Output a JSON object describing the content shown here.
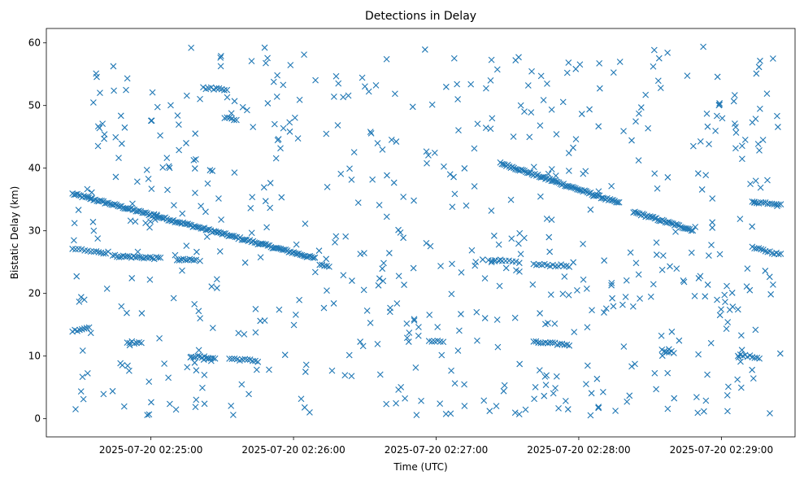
{
  "chart_data": {
    "type": "scatter",
    "title": "Detections in Delay",
    "xlabel": "Time (UTC)",
    "ylabel": "Bistatic Delay (km)",
    "x_axis_type": "datetime",
    "xlim": [
      "2025-07-20 02:24:16",
      "2025-07-20 02:29:31"
    ],
    "ylim": [
      -2.9,
      62.3
    ],
    "x_ticks": [
      "2025-07-20 02:25:00",
      "2025-07-20 02:26:00",
      "2025-07-20 02:27:00",
      "2025-07-20 02:28:00",
      "2025-07-20 02:29:00"
    ],
    "y_ticks": [
      0,
      10,
      20,
      30,
      40,
      50,
      60
    ],
    "grid": false,
    "marker": "x",
    "color": "#1f77b4",
    "track_series": [
      {
        "x_start": "2025-07-20 02:24:27",
        "x_end": "2025-07-20 02:26:09",
        "y_start": 35.9,
        "y_end": 25.6,
        "count": 150
      },
      {
        "x_start": "2025-07-20 02:27:27",
        "x_end": "2025-07-20 02:28:17",
        "y_start": 40.8,
        "y_end": 34.4,
        "count": 80
      },
      {
        "x_start": "2025-07-20 02:28:23",
        "x_end": "2025-07-20 02:28:48",
        "y_start": 33.0,
        "y_end": 30.1,
        "count": 40
      },
      {
        "x_start": "2025-07-20 02:24:44",
        "x_end": "2025-07-20 02:25:04",
        "y_start": 26.0,
        "y_end": 25.6,
        "count": 24
      },
      {
        "x_start": "2025-07-20 02:25:11",
        "x_end": "2025-07-20 02:25:19",
        "y_start": 25.4,
        "y_end": 25.3,
        "count": 10
      },
      {
        "x_start": "2025-07-20 02:24:27",
        "x_end": "2025-07-20 02:24:36",
        "y_start": 27.1,
        "y_end": 26.8,
        "count": 8
      },
      {
        "x_start": "2025-07-20 02:24:37",
        "x_end": "2025-07-20 02:24:42",
        "y_start": 26.6,
        "y_end": 26.5,
        "count": 6
      },
      {
        "x_start": "2025-07-20 02:27:22",
        "x_end": "2025-07-20 02:27:35",
        "y_start": 25.2,
        "y_end": 25.0,
        "count": 10
      },
      {
        "x_start": "2025-07-20 02:27:41",
        "x_end": "2025-07-20 02:27:56",
        "y_start": 24.6,
        "y_end": 24.4,
        "count": 14
      },
      {
        "x_start": "2025-07-20 02:29:13",
        "x_end": "2025-07-20 02:29:25",
        "y_start": 27.3,
        "y_end": 26.2,
        "count": 14
      },
      {
        "x_start": "2025-07-20 02:29:13",
        "x_end": "2025-07-20 02:29:25",
        "y_start": 34.6,
        "y_end": 34.3,
        "count": 14
      },
      {
        "x_start": "2025-07-20 02:25:22",
        "x_end": "2025-07-20 02:25:32",
        "y_start": 52.8,
        "y_end": 52.6,
        "count": 10
      },
      {
        "x_start": "2025-07-20 02:25:31",
        "x_end": "2025-07-20 02:25:36",
        "y_start": 48.1,
        "y_end": 47.7,
        "count": 6
      },
      {
        "x_start": "2025-07-20 02:24:27",
        "x_end": "2025-07-20 02:24:34",
        "y_start": 14.0,
        "y_end": 14.6,
        "count": 8
      },
      {
        "x_start": "2025-07-20 02:24:50",
        "x_end": "2025-07-20 02:24:56",
        "y_start": 12.3,
        "y_end": 12.0,
        "count": 7
      },
      {
        "x_start": "2025-07-20 02:25:17",
        "x_end": "2025-07-20 02:25:27",
        "y_start": 10.0,
        "y_end": 9.6,
        "count": 12
      },
      {
        "x_start": "2025-07-20 02:25:33",
        "x_end": "2025-07-20 02:25:45",
        "y_start": 9.6,
        "y_end": 9.2,
        "count": 12
      },
      {
        "x_start": "2025-07-20 02:26:57",
        "x_end": "2025-07-20 02:27:03",
        "y_start": 12.4,
        "y_end": 12.3,
        "count": 6
      },
      {
        "x_start": "2025-07-20 02:27:41",
        "x_end": "2025-07-20 02:27:56",
        "y_start": 12.2,
        "y_end": 11.8,
        "count": 16
      },
      {
        "x_start": "2025-07-20 02:28:35",
        "x_end": "2025-07-20 02:28:40",
        "y_start": 10.9,
        "y_end": 10.6,
        "count": 6
      },
      {
        "x_start": "2025-07-20 02:29:07",
        "x_end": "2025-07-20 02:29:16",
        "y_start": 10.2,
        "y_end": 9.7,
        "count": 10
      },
      {
        "x_start": "2025-07-20 02:26:11",
        "x_end": "2025-07-20 02:26:15",
        "y_start": 24.6,
        "y_end": 24.2,
        "count": 5
      }
    ],
    "scatter_points": {
      "x_min": "2025-07-20 02:24:27",
      "x_max": "2025-07-20 02:29:25",
      "y_min": 0.5,
      "y_max": 59.5,
      "count": 620
    }
  }
}
